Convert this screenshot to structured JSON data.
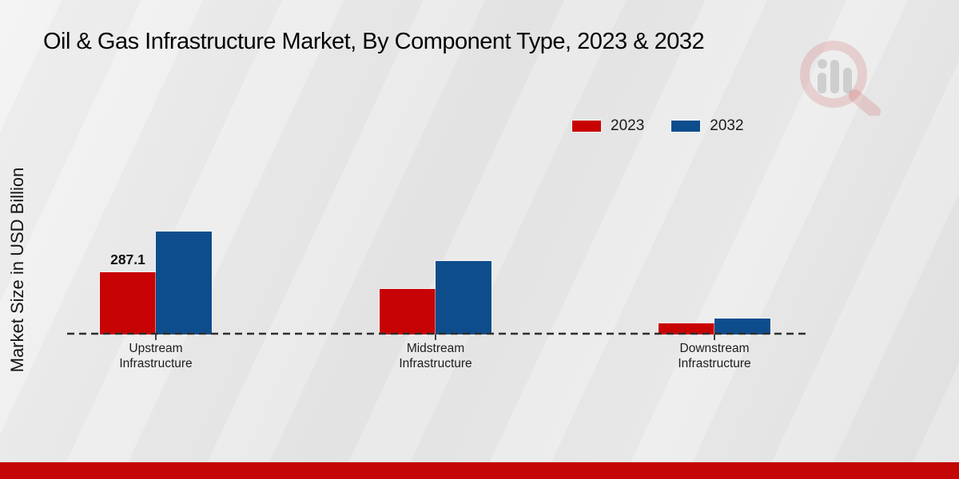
{
  "chart_data": {
    "type": "bar",
    "title": "Oil & Gas Infrastructure Market, By Component Type, 2023 & 2032",
    "ylabel": "Market Size in USD Billion",
    "xlabel": "",
    "categories": [
      "Upstream Infrastructure",
      "Midstream Infrastructure",
      "Downstream Infrastructure"
    ],
    "series": [
      {
        "name": "2023",
        "color": "#c80303",
        "values": [
          287.1,
          208,
          50
        ]
      },
      {
        "name": "2032",
        "color": "#0d4d8c",
        "values": [
          475,
          340,
          75
        ]
      }
    ],
    "data_labels": [
      [
        "287.1",
        "",
        ""
      ],
      [
        "",
        "",
        ""
      ]
    ],
    "legend_position": "top-right",
    "baseline_style": "dashed",
    "grid": false
  },
  "footer": {
    "accent_color": "#c40606"
  },
  "watermark": {
    "icon": "magnifier-bar-chart-logo",
    "ring_color": "rgba(197,64,64,0.18)",
    "bar_color": "rgba(140,140,140,0.32)"
  }
}
